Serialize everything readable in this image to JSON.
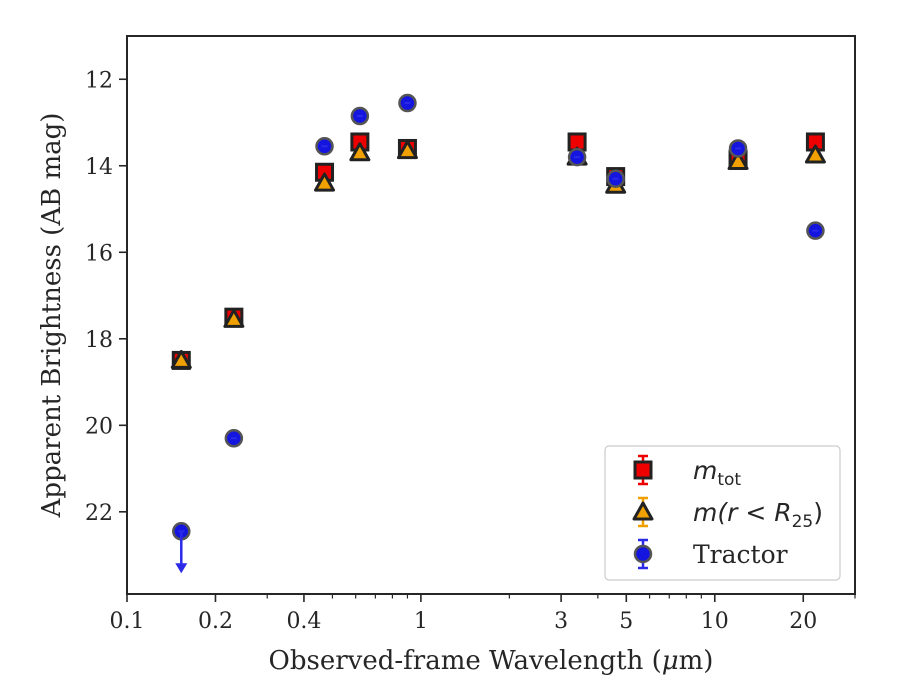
{
  "chart_data": {
    "type": "scatter",
    "title": "",
    "xlabel_main": "Observed-frame Wavelength (",
    "xlabel_mu": "μ",
    "xlabel_end": "m)",
    "ylabel": "Apparent Brightness (AB mag)",
    "x_scale": "log",
    "xlim": [
      0.1,
      30
    ],
    "ylim": [
      23.9,
      11.0
    ],
    "y_inverted": true,
    "x_ticks": [
      {
        "value": 0.1,
        "label": "0.1"
      },
      {
        "value": 0.2,
        "label": "0.2"
      },
      {
        "value": 0.4,
        "label": "0.4"
      },
      {
        "value": 1,
        "label": "1"
      },
      {
        "value": 3,
        "label": "3"
      },
      {
        "value": 5,
        "label": "5"
      },
      {
        "value": 10,
        "label": "10"
      },
      {
        "value": 20,
        "label": "20"
      }
    ],
    "x_minor_ticks": [
      0.3,
      0.5,
      0.6,
      0.7,
      0.8,
      0.9,
      2,
      4,
      6,
      7,
      8,
      9,
      30
    ],
    "y_ticks": [
      12,
      14,
      16,
      18,
      20,
      22
    ],
    "grid": false,
    "legend_position": "lower-right",
    "series": [
      {
        "key": "mtot",
        "legend_base": "m",
        "legend_sub": "tot",
        "legend_rest": "",
        "marker": "square",
        "fill": "#ee0000",
        "edge": "#222222",
        "errcolor": "#ee0000",
        "points": [
          {
            "x": 0.153,
            "y": 18.5
          },
          {
            "x": 0.231,
            "y": 17.5
          },
          {
            "x": 0.47,
            "y": 14.15
          },
          {
            "x": 0.62,
            "y": 13.45
          },
          {
            "x": 0.9,
            "y": 13.6
          },
          {
            "x": 3.4,
            "y": 13.45
          },
          {
            "x": 4.6,
            "y": 14.25
          },
          {
            "x": 12.0,
            "y": 13.85
          },
          {
            "x": 22.0,
            "y": 13.45
          }
        ]
      },
      {
        "key": "mr25",
        "legend_base": "m",
        "legend_mid": "(r < R",
        "legend_sub": "25",
        "legend_rest": ")",
        "marker": "triangle",
        "fill": "#f0a000",
        "edge": "#222222",
        "errcolor": "#f0a000",
        "points": [
          {
            "x": 0.153,
            "y": 18.5
          },
          {
            "x": 0.231,
            "y": 17.55
          },
          {
            "x": 0.47,
            "y": 14.4
          },
          {
            "x": 0.62,
            "y": 13.7
          },
          {
            "x": 0.9,
            "y": 13.65
          },
          {
            "x": 3.4,
            "y": 13.8
          },
          {
            "x": 4.6,
            "y": 14.45
          },
          {
            "x": 12.0,
            "y": 13.9
          },
          {
            "x": 22.0,
            "y": 13.75
          }
        ]
      },
      {
        "key": "tractor",
        "legend_base": "Tractor",
        "marker": "circle",
        "fill": "#1515e0",
        "edge": "#555555",
        "errcolor": "#2a2ae8",
        "points": [
          {
            "x": 0.153,
            "y": 22.45,
            "upper_limit": true
          },
          {
            "x": 0.231,
            "y": 20.3
          },
          {
            "x": 0.47,
            "y": 13.55
          },
          {
            "x": 0.62,
            "y": 12.85
          },
          {
            "x": 0.9,
            "y": 12.55
          },
          {
            "x": 3.4,
            "y": 13.8
          },
          {
            "x": 4.6,
            "y": 14.3
          },
          {
            "x": 12.0,
            "y": 13.6
          },
          {
            "x": 22.0,
            "y": 15.5
          }
        ]
      }
    ]
  }
}
